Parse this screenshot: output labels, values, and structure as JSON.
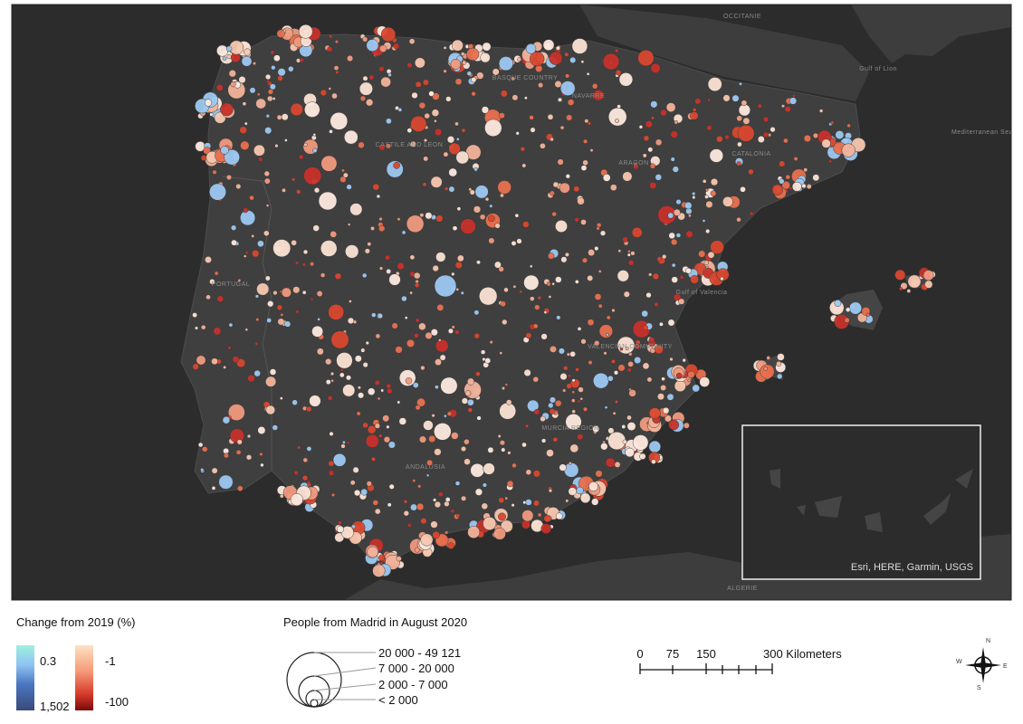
{
  "map": {
    "labels": [
      "PORTUGAL",
      "CASTILE AND LEON",
      "ARAGON",
      "CATALONIA",
      "Gulf of Valencia",
      "VALENCIAN COMMUNITY",
      "MURCIA REGION",
      "ANDALUSIA",
      "BASQUE COUNTRY",
      "NAVARRE",
      "Gulf of Lion",
      "Mediterranean Sea",
      "OCCITANIE",
      "ALGERIE"
    ],
    "attribution": "Esri, HERE, Garmin, USGS"
  },
  "legend": {
    "color_title": "Change from 2019 (%)",
    "positive": [
      "0.3",
      "1,502"
    ],
    "negative": [
      "-1",
      "-100"
    ],
    "size_title": "People from Madrid in August 2020",
    "size_classes": [
      "20 000 - 49 121",
      "7 000 - 20 000",
      "2 000 - 7 000",
      "< 2 000"
    ]
  },
  "scale_bar": {
    "ticks": [
      "0",
      "75",
      "150"
    ],
    "end": "300 Kilometers"
  },
  "compass": [
    "N",
    "E",
    "S",
    "W"
  ]
}
